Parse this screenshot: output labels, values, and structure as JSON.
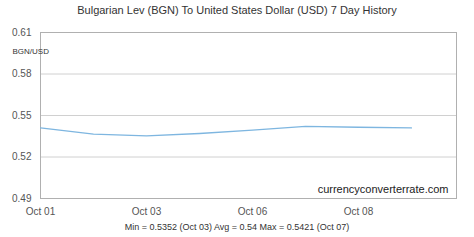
{
  "chart_data": {
    "type": "line",
    "title": "Bulgarian Lev (BGN) To United States Dollar (USD) 7 Day History",
    "y_label": "BGN/USD",
    "categories": [
      "Oct 01",
      null,
      "Oct 03",
      null,
      "Oct 06",
      null,
      "Oct 08",
      null
    ],
    "values": [
      0.541,
      0.5365,
      0.5352,
      0.537,
      0.5395,
      0.5421,
      0.5415,
      0.541
    ],
    "color": "#7eb6e0",
    "ylim": [
      0.49,
      0.61
    ],
    "yticks": [
      0.49,
      0.52,
      0.55,
      0.58,
      0.61
    ],
    "grid": true,
    "annotations": [
      "currencyconverterrate.com"
    ],
    "caption": "Min = 0.5352 (Oct 03) Avg = 0.54 Max = 0.5421 (Oct 07)"
  }
}
